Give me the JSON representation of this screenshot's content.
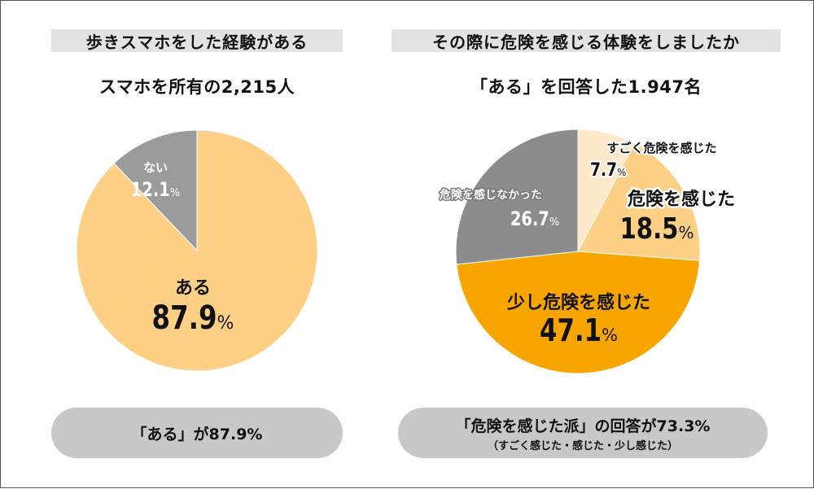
{
  "left": {
    "header": "歩きスマホをした経験がある",
    "subtitle": "スマホを所有の2,215人",
    "summary": "「ある」が87.9%"
  },
  "right": {
    "header": "その際に危険を感じる体験をしましたか",
    "subtitle": "「ある」を回答した1.947名",
    "summary": "「危険を感じた派」の回答が73.3%",
    "summary_note": "（すごく感じた・感じた・少し感じた）"
  },
  "colors": {
    "light_yellow": "#fdd085",
    "pale_yellow": "#feeacb",
    "orange": "#f9a500",
    "gray": "#9b9b9b",
    "dark_gray": "#8c8c8c",
    "header_bg": "#e3e3e3",
    "pill_bg": "#c8c8c8"
  },
  "chart_data": [
    {
      "type": "pie",
      "title": "歩きスマホをした経験がある",
      "unit": "%",
      "slices": [
        {
          "label": "ある",
          "value": 87.9,
          "color": "#fdd085"
        },
        {
          "label": "ない",
          "value": 12.1,
          "color": "#9b9b9b"
        }
      ]
    },
    {
      "type": "pie",
      "title": "その際に危険を感じる体験をしましたか",
      "unit": "%",
      "slices": [
        {
          "label": "すごく危険を感じた",
          "value": 7.7,
          "color": "#feeacb"
        },
        {
          "label": "危険を感じた",
          "value": 18.5,
          "color": "#fdd085"
        },
        {
          "label": "少し危険を感じた",
          "value": 47.1,
          "color": "#f9a500"
        },
        {
          "label": "危険を感じなかった",
          "value": 26.7,
          "color": "#8c8c8c"
        }
      ]
    }
  ]
}
